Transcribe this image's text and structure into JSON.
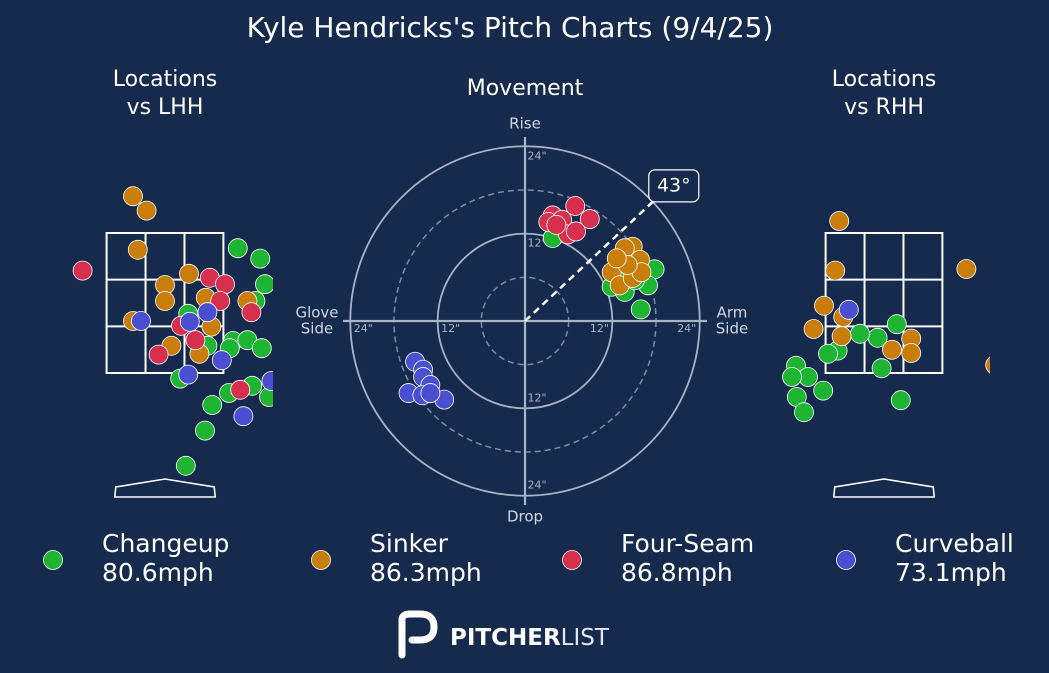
{
  "title": "Kyle Hendricks's Pitch Charts (9/4/25)",
  "legend": [
    {
      "name": "Changeup",
      "speed": "80.6mph",
      "color": "#1db532"
    },
    {
      "name": "Sinker",
      "speed": "86.3mph",
      "color": "#c97d0a"
    },
    {
      "name": "Four-Seam",
      "speed": "86.8mph",
      "color": "#d6304e"
    },
    {
      "name": "Curveball",
      "speed": "73.1mph",
      "color": "#4a4fd1"
    }
  ],
  "brand": {
    "bold": "PITCHER",
    "light": "LIST"
  },
  "chart_data": [
    {
      "type": "location",
      "title_lines": [
        "Locations",
        "vs LHH"
      ],
      "xlim": [
        -1.4,
        1.35
      ],
      "ylim": [
        0,
        4.6
      ],
      "strike_zone": {
        "x": [
          -0.73,
          0.73
        ],
        "y": [
          1.55,
          3.3
        ]
      },
      "series": [
        {
          "name": "Changeup",
          "color": "#1db532",
          "x": [
            0.91,
            1.19,
            1.25,
            1.13,
            0.29,
            0.85,
            1.03,
            1.21,
            0.81,
            0.53,
            0.19,
            1.09,
            0.8,
            0.59,
            1.3,
            0.5,
            0.26
          ],
          "y": [
            3.11,
            2.98,
            2.66,
            2.45,
            2.29,
            1.95,
            1.96,
            1.86,
            1.86,
            1.89,
            1.48,
            1.39,
            1.3,
            1.15,
            1.25,
            0.83,
            0.39
          ]
        },
        {
          "name": "Sinker",
          "color": "#c97d0a",
          "x": [
            -0.4,
            -0.23,
            -0.34,
            0,
            0.3,
            0,
            0.51,
            -0.4,
            0.58,
            0.08,
            0.43,
            1.03
          ],
          "y": [
            3.76,
            3.58,
            3.09,
            2.65,
            2.79,
            2.45,
            2.49,
            2.2,
            2.13,
            1.89,
            1.79,
            2.45
          ]
        },
        {
          "name": "Four-Seam",
          "color": "#d6304e",
          "x": [
            -1.03,
            0.56,
            0.75,
            0.69,
            1.08,
            0.2,
            0.38,
            -0.08,
            0.94
          ],
          "y": [
            2.83,
            2.74,
            2.66,
            2.45,
            2.31,
            2.14,
            1.96,
            1.78,
            1.34
          ]
        },
        {
          "name": "Curveball",
          "color": "#4a4fd1",
          "x": [
            -0.3,
            0.53,
            0.31,
            0.71,
            0.29,
            1.33,
            0.98
          ],
          "y": [
            2.2,
            2.31,
            2.19,
            1.71,
            1.53,
            1.45,
            1.01
          ]
        }
      ]
    },
    {
      "type": "movement",
      "title": "Movement",
      "axis_labels": {
        "top": [
          "Rise"
        ],
        "bottom": [
          "Drop"
        ],
        "left": [
          "Glove",
          "Side"
        ],
        "right": [
          "Arm",
          "Side"
        ]
      },
      "xlim": [
        -25,
        25
      ],
      "rticks": [
        {
          "value": 12,
          "label": "12\""
        },
        {
          "value": 24,
          "label": "24\""
        }
      ],
      "minor_rticks": [
        6,
        18
      ],
      "arm_angle": {
        "value": 43,
        "label": "43°"
      },
      "series": [
        {
          "name": "Changeup",
          "color": "#1db532",
          "x": [
            3.8,
            17.8,
            16.9,
            15.9,
            11.9,
            13.7,
            15.1,
            13
          ],
          "y": [
            11.4,
            7.1,
            4.9,
            1.6,
            4.7,
            4,
            5.6,
            6.3
          ]
        },
        {
          "name": "Sinker",
          "color": "#c97d0a",
          "x": [
            14.8,
            13.7,
            15.8,
            11.9,
            13,
            14.8,
            16,
            14.1,
            12.6
          ],
          "y": [
            10.2,
            10,
            8.4,
            6.7,
            4.9,
            5.9,
            6.7,
            7.7,
            8.6
          ]
        },
        {
          "name": "Four-Seam",
          "color": "#d6304e",
          "x": [
            3.8,
            6.9,
            8.9,
            3.2,
            5.1,
            5.9,
            7,
            4.3
          ],
          "y": [
            14.5,
            15.8,
            14,
            13.6,
            13.9,
            11.9,
            12.3,
            13.2
          ]
        },
        {
          "name": "Curveball",
          "color": "#4a4fd1",
          "x": [
            -15.1,
            -14,
            -14,
            -13,
            -16,
            -14.1,
            -11.1,
            -13
          ],
          "y": [
            -5.6,
            -6.7,
            -7.7,
            -8.8,
            -9.9,
            -10.2,
            -10.8,
            -9.9
          ]
        }
      ]
    },
    {
      "type": "location",
      "title_lines": [
        "Locations",
        "vs RHH"
      ],
      "xlim": [
        -1.3,
        1.33
      ],
      "ylim": [
        0,
        4.6
      ],
      "strike_zone": {
        "x": [
          -0.73,
          0.73
        ],
        "y": [
          1.55,
          3.3
        ]
      },
      "series": [
        {
          "name": "Changeup",
          "color": "#1db532",
          "x": [
            0.16,
            -0.08,
            -0.3,
            -0.58,
            -0.7,
            -1.1,
            -0.95,
            -1.15,
            -1.09,
            -0.76,
            -1,
            -0.03,
            0.21
          ],
          "y": [
            2.16,
            1.99,
            2.04,
            1.83,
            1.79,
            1.64,
            1.5,
            1.5,
            1.25,
            1.33,
            1.06,
            1.61,
            1.21
          ]
        },
        {
          "name": "Sinker",
          "color": "#c97d0a",
          "x": [
            -0.56,
            -0.61,
            1.03,
            -0.75,
            -0.51,
            -0.88,
            -0.53,
            0.34,
            0.1,
            0.34,
            1.39
          ],
          "y": [
            3.45,
            2.83,
            2.85,
            2.39,
            2.25,
            2.1,
            2.01,
            1.98,
            1.84,
            1.8,
            1.65
          ]
        },
        {
          "name": "Four-Seam",
          "color": "#d6304e",
          "x": [],
          "y": []
        },
        {
          "name": "Curveball",
          "color": "#4a4fd1",
          "x": [
            -0.44
          ],
          "y": [
            2.34
          ]
        }
      ]
    }
  ]
}
